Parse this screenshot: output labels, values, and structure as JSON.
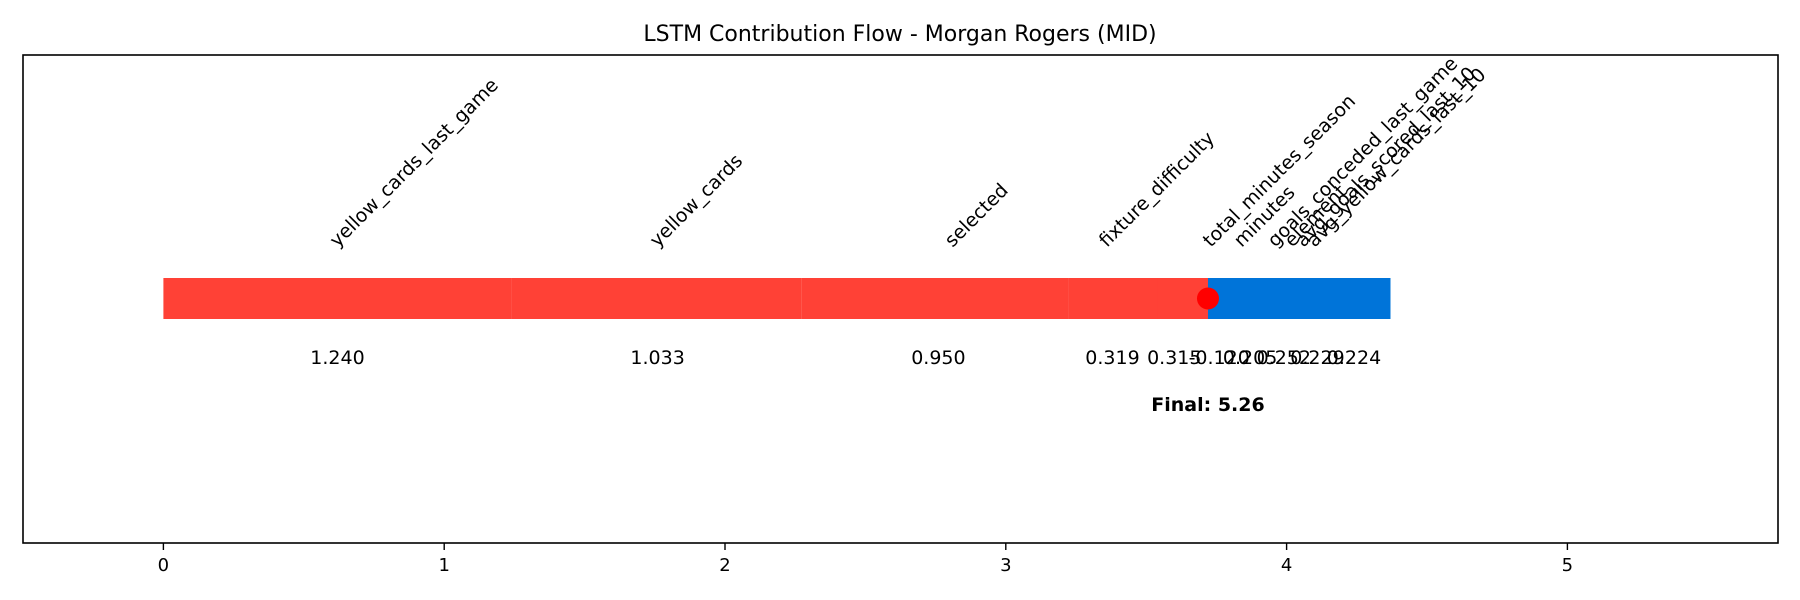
{
  "chart_data": {
    "type": "bar",
    "title": "LSTM Contribution Flow - Morgan Rogers (MID)",
    "xlim": [
      -0.5,
      5.75
    ],
    "x_ticks": [
      0,
      1,
      2,
      3,
      4,
      5
    ],
    "x_tick_labels": [
      "0",
      "1",
      "2",
      "3",
      "4",
      "5"
    ],
    "grid": false,
    "segments": [
      {
        "feature": "yellow_cards_last_game",
        "value": 1.24,
        "value_label": "1.240",
        "start": 0.0,
        "end": 1.24,
        "direction": "positive"
      },
      {
        "feature": "yellow_cards",
        "value": 1.033,
        "value_label": "1.033",
        "start": 1.24,
        "end": 2.273,
        "direction": "positive"
      },
      {
        "feature": "selected",
        "value": 0.95,
        "value_label": "0.950",
        "start": 2.273,
        "end": 3.223,
        "direction": "positive"
      },
      {
        "feature": "fixture_difficulty",
        "value": 0.319,
        "value_label": "0.319",
        "start": 3.223,
        "end": 3.542,
        "direction": "positive"
      },
      {
        "feature": "total_minutes_season",
        "value": 0.315,
        "value_label": "0.315",
        "start": 3.542,
        "end": 3.857,
        "direction": "positive"
      },
      {
        "feature": "minutes",
        "value": -0.12,
        "value_label": "-0.120",
        "start": 3.857,
        "end": 3.737,
        "direction": "negative"
      },
      {
        "feature": "goals_conceded_last_game",
        "value": 0.205,
        "value_label": "0.205",
        "start": 3.737,
        "end": 3.942,
        "direction": "positive"
      },
      {
        "feature": "element",
        "value": 0.252,
        "value_label": "0.252",
        "start": 3.942,
        "end": 4.194,
        "direction": "positive"
      },
      {
        "feature": "avg_goals_scored_last_10",
        "value": 0.229,
        "value_label": "0.229",
        "start": 4.194,
        "end": 4.423,
        "direction": "positive"
      },
      {
        "feature": "avg_yellow_cards_last_10",
        "value": 0.224,
        "value_label": "0.224",
        "start": 4.423,
        "end": 4.647,
        "direction": "positive"
      }
    ],
    "final_value": 5.26,
    "final_label": "Final: 5.26",
    "marker_x": 3.72,
    "colors": {
      "positive": "#ff4136",
      "negative": "#0074d9",
      "marker": "#ff0000",
      "axes": "#000000"
    }
  }
}
